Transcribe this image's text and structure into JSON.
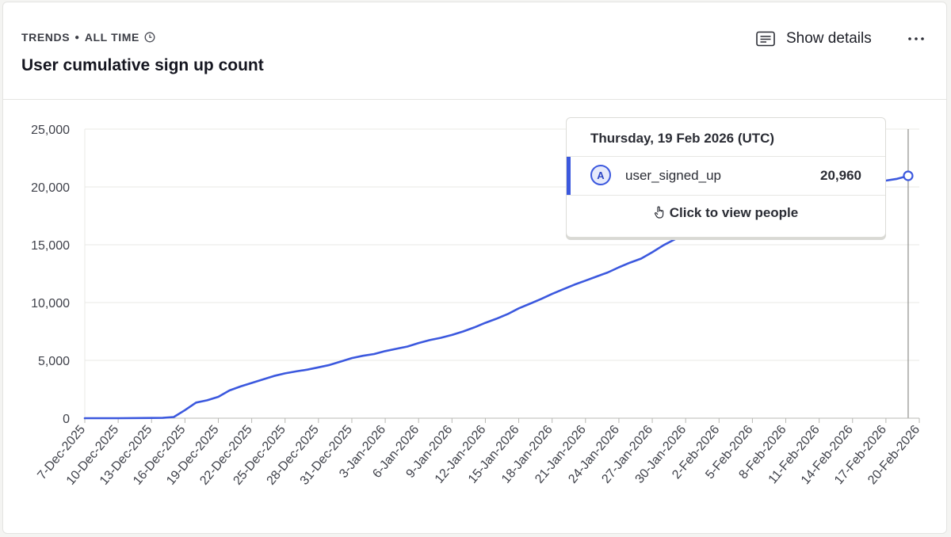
{
  "header": {
    "meta_kind": "TRENDS",
    "meta_range": "ALL TIME",
    "title": "User cumulative sign up count",
    "show_details_label": "Show details"
  },
  "icons": {
    "range_info": "clock-icon",
    "show_details": "details-list-icon",
    "more": "more-horizontal-icon",
    "tooltip_link": "hand-pointer-icon"
  },
  "colors": {
    "series": "#3b58de",
    "grid": "#e8e8e6",
    "axis": "#b8b8b4"
  },
  "tooltip": {
    "date": "Thursday, 19 Feb 2026 (UTC)",
    "badge": "A",
    "series_name": "user_signed_up",
    "value": "20,960",
    "link_label": "Click to view people"
  },
  "chart_data": {
    "type": "line",
    "title": "User cumulative sign up count",
    "xlabel": "",
    "ylabel": "",
    "ylim": [
      0,
      25000
    ],
    "y_ticks": [
      0,
      5000,
      10000,
      15000,
      20000,
      25000
    ],
    "y_tick_labels": [
      "0",
      "5,000",
      "10,000",
      "15,000",
      "20,000",
      "25,000"
    ],
    "x_ticks": [
      "7-Dec-2025",
      "10-Dec-2025",
      "13-Dec-2025",
      "16-Dec-2025",
      "19-Dec-2025",
      "22-Dec-2025",
      "25-Dec-2025",
      "28-Dec-2025",
      "31-Dec-2025",
      "3-Jan-2026",
      "6-Jan-2026",
      "9-Jan-2026",
      "12-Jan-2026",
      "15-Jan-2026",
      "18-Jan-2026",
      "21-Jan-2026",
      "24-Jan-2026",
      "27-Jan-2026",
      "30-Jan-2026",
      "2-Feb-2026",
      "5-Feb-2026",
      "8-Feb-2026",
      "11-Feb-2026",
      "14-Feb-2026",
      "17-Feb-2026",
      "20-Feb-2026"
    ],
    "grid": true,
    "legend": "none",
    "highlight": {
      "x": "2026-02-19",
      "y": 20960
    },
    "series": [
      {
        "color": "#3b58de",
        "points": [
          [
            "2025-12-07",
            0
          ],
          [
            "2025-12-10",
            0
          ],
          [
            "2025-12-13",
            20
          ],
          [
            "2025-12-14",
            30
          ],
          [
            "2025-12-15",
            100
          ],
          [
            "2025-12-16",
            700
          ],
          [
            "2025-12-17",
            1350
          ],
          [
            "2025-12-18",
            1550
          ],
          [
            "2025-12-19",
            1850
          ],
          [
            "2025-12-20",
            2400
          ],
          [
            "2025-12-21",
            2750
          ],
          [
            "2025-12-22",
            3050
          ],
          [
            "2025-12-23",
            3350
          ],
          [
            "2025-12-24",
            3650
          ],
          [
            "2025-12-25",
            3880
          ],
          [
            "2025-12-26",
            4050
          ],
          [
            "2025-12-27",
            4200
          ],
          [
            "2025-12-28",
            4400
          ],
          [
            "2025-12-29",
            4600
          ],
          [
            "2025-12-30",
            4900
          ],
          [
            "2025-12-31",
            5200
          ],
          [
            "2026-01-01",
            5400
          ],
          [
            "2026-01-02",
            5550
          ],
          [
            "2026-01-03",
            5800
          ],
          [
            "2026-01-04",
            6000
          ],
          [
            "2026-01-05",
            6200
          ],
          [
            "2026-01-06",
            6500
          ],
          [
            "2026-01-07",
            6750
          ],
          [
            "2026-01-08",
            6950
          ],
          [
            "2026-01-09",
            7200
          ],
          [
            "2026-01-10",
            7500
          ],
          [
            "2026-01-11",
            7850
          ],
          [
            "2026-01-12",
            8250
          ],
          [
            "2026-01-13",
            8600
          ],
          [
            "2026-01-14",
            9000
          ],
          [
            "2026-01-15",
            9500
          ],
          [
            "2026-01-16",
            9900
          ],
          [
            "2026-01-17",
            10300
          ],
          [
            "2026-01-18",
            10750
          ],
          [
            "2026-01-19",
            11150
          ],
          [
            "2026-01-20",
            11550
          ],
          [
            "2026-01-21",
            11900
          ],
          [
            "2026-01-22",
            12250
          ],
          [
            "2026-01-23",
            12600
          ],
          [
            "2026-01-24",
            13050
          ],
          [
            "2026-01-25",
            13450
          ],
          [
            "2026-01-26",
            13800
          ],
          [
            "2026-01-27",
            14350
          ],
          [
            "2026-01-28",
            14950
          ],
          [
            "2026-01-29",
            15450
          ],
          [
            "2026-01-30",
            15950
          ],
          [
            "2026-01-31",
            16400
          ],
          [
            "2026-02-01",
            16800
          ],
          [
            "2026-02-02",
            17150
          ],
          [
            "2026-02-03",
            17500
          ],
          [
            "2026-02-04",
            17850
          ],
          [
            "2026-02-05",
            18150
          ],
          [
            "2026-02-06",
            18450
          ],
          [
            "2026-02-07",
            18700
          ],
          [
            "2026-02-08",
            18950
          ],
          [
            "2026-02-09",
            19150
          ],
          [
            "2026-02-10",
            19350
          ],
          [
            "2026-02-11",
            19550
          ],
          [
            "2026-02-12",
            19750
          ],
          [
            "2026-02-13",
            19950
          ],
          [
            "2026-02-14",
            20100
          ],
          [
            "2026-02-15",
            20250
          ],
          [
            "2026-02-16",
            20400
          ],
          [
            "2026-02-17",
            20550
          ],
          [
            "2026-02-18",
            20700
          ],
          [
            "2026-02-19",
            20960
          ]
        ]
      }
    ]
  }
}
